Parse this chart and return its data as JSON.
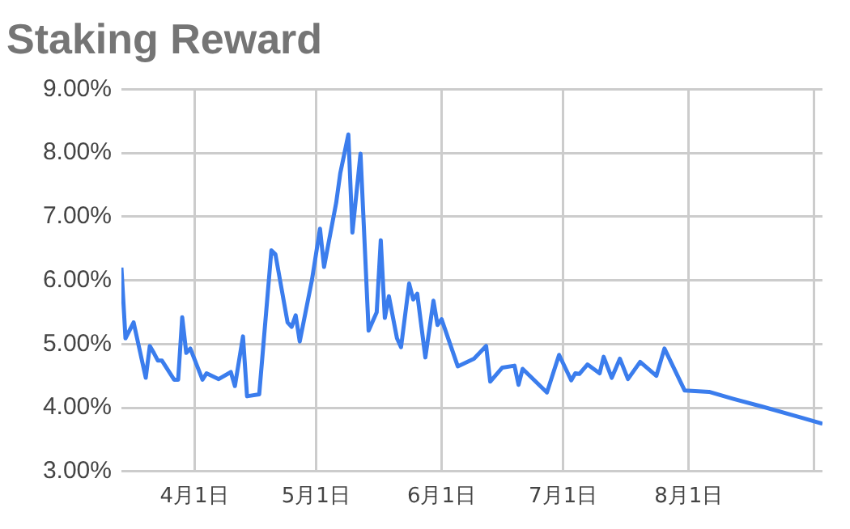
{
  "chart_data": {
    "type": "line",
    "title": "Staking Reward",
    "x": [
      "--03-14",
      "--03-15",
      "--03-17",
      "--03-20",
      "--03-21",
      "--03-22",
      "--03-23",
      "--03-24",
      "--03-27",
      "--03-28",
      "--03-29",
      "--03-30",
      "--03-31",
      "--04-03",
      "--04-04",
      "--04-07",
      "--04-10",
      "--04-11",
      "--04-13",
      "--04-14",
      "--04-17",
      "--04-20",
      "--04-21",
      "--04-24",
      "--04-25",
      "--04-26",
      "--04-27",
      "--04-30",
      "--05-02",
      "--05-03",
      "--05-06",
      "--05-07",
      "--05-09",
      "--05-10",
      "--05-12",
      "--05-14",
      "--05-16",
      "--05-17",
      "--05-18",
      "--05-19",
      "--05-21",
      "--05-22",
      "--05-24",
      "--05-25",
      "--05-26",
      "--05-28",
      "--05-30",
      "--05-31",
      "--06-01",
      "--06-05",
      "--06-09",
      "--06-12",
      "--06-13",
      "--06-16",
      "--06-19",
      "--06-20",
      "--06-21",
      "--06-27",
      "--06-30",
      "--07-03",
      "--07-04",
      "--07-05",
      "--07-07",
      "--07-10",
      "--07-11",
      "--07-13",
      "--07-15",
      "--07-17",
      "--07-20",
      "--07-24",
      "--07-26",
      "--07-31",
      "--08-06",
      "--08-12",
      "--08-19",
      "--08-29",
      "--09-03"
    ],
    "series": [
      {
        "color": "#3b7ded",
        "values": [
          6.2,
          5.09,
          5.34,
          4.47,
          4.97,
          4.86,
          4.74,
          4.74,
          4.44,
          4.44,
          5.42,
          4.86,
          4.93,
          4.44,
          4.54,
          4.45,
          4.56,
          4.34,
          5.12,
          4.18,
          4.21,
          6.47,
          6.41,
          5.34,
          5.27,
          5.45,
          5.04,
          6.0,
          6.81,
          6.21,
          7.22,
          7.68,
          8.29,
          6.75,
          7.99,
          5.21,
          5.5,
          6.63,
          5.41,
          5.75,
          5.09,
          4.95,
          5.95,
          5.7,
          5.79,
          4.79,
          5.68,
          5.3,
          5.39,
          4.65,
          4.77,
          4.97,
          4.41,
          4.63,
          4.66,
          4.36,
          4.61,
          4.24,
          4.83,
          4.43,
          4.54,
          4.53,
          4.68,
          4.54,
          4.8,
          4.47,
          4.77,
          4.45,
          4.72,
          4.5,
          4.93,
          4.27,
          4.25,
          4.14,
          4.02,
          3.84,
          3.75
        ]
      }
    ],
    "xlim": [
      "--03-14",
      "--09-03"
    ],
    "xticks": [
      {
        "value": "--04-01",
        "label": "4月1日"
      },
      {
        "value": "--05-01",
        "label": "5月1日"
      },
      {
        "value": "--06-01",
        "label": "6月1日"
      },
      {
        "value": "--07-01",
        "label": "7月1日"
      },
      {
        "value": "--08-01",
        "label": "8月1日"
      },
      {
        "value": "--09-01",
        "label": null
      }
    ],
    "ylim": [
      3,
      9
    ],
    "yticks": [
      {
        "value": 3,
        "label": "3.00%"
      },
      {
        "value": 4,
        "label": "4.00%"
      },
      {
        "value": 5,
        "label": "5.00%"
      },
      {
        "value": 6,
        "label": "6.00%"
      },
      {
        "value": 7,
        "label": "7.00%"
      },
      {
        "value": 8,
        "label": "8.00%"
      },
      {
        "value": 9,
        "label": "9.00%"
      }
    ],
    "grid": true,
    "legend": false,
    "marker": "none",
    "line_style": "solid"
  }
}
